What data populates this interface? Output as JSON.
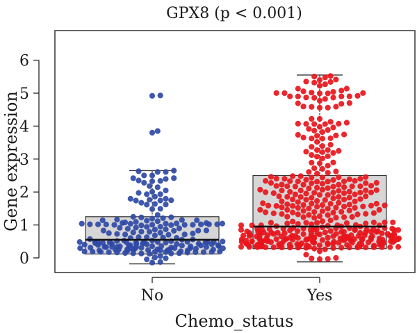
{
  "chart_data": {
    "type": "boxplot-beeswarm",
    "title": "GPX8 (p < 0.001)",
    "xlabel": "Chemo_status",
    "ylabel": "Gene expression",
    "categories": [
      "No",
      "Yes"
    ],
    "ylim": [
      -0.25,
      6.5
    ],
    "yticks": [
      0,
      1,
      2,
      3,
      4,
      5,
      6
    ],
    "grid": false,
    "colors": {
      "No": "#2f4aa6",
      "Yes": "#e8151b",
      "box_fill": "#d6d6d6"
    },
    "series": [
      {
        "box": {
          "whisker_low": -0.18,
          "q1": 0.12,
          "median": 0.55,
          "q3": 1.25,
          "whisker_high": 2.65
        }
      },
      {
        "box": {
          "whisker_low": -0.12,
          "q1": 0.28,
          "median": 0.95,
          "q3": 2.5,
          "whisker_high": 5.55
        }
      }
    ]
  }
}
